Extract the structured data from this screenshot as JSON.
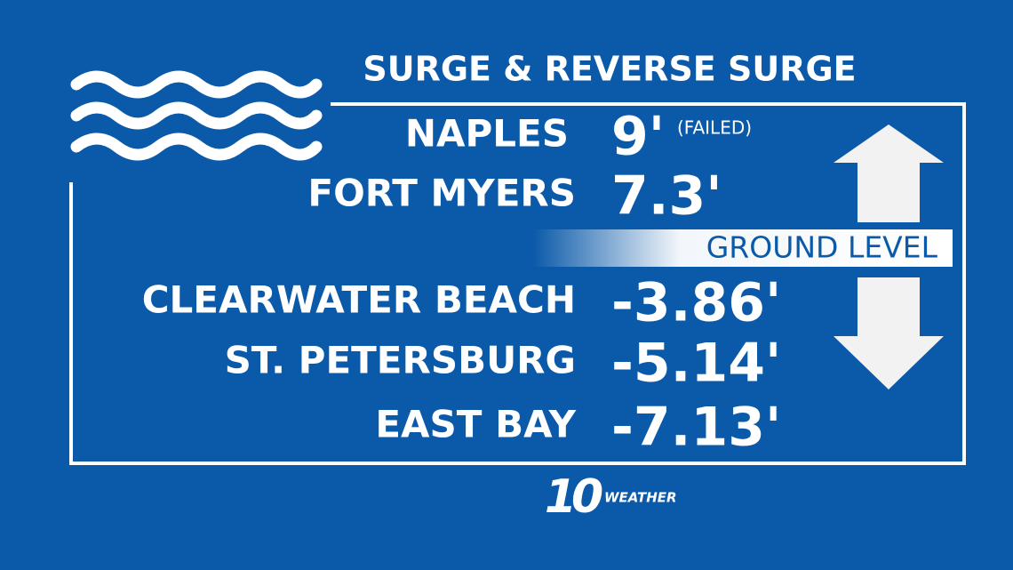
{
  "title": "SURGE & REVERSE SURGE",
  "rows": [
    {
      "name": "NAPLES",
      "value": "9'",
      "note": "(FAILED)"
    },
    {
      "name": "FORT MYERS",
      "value": "7.3'"
    },
    {
      "name": "CLEARWATER BEACH",
      "value": "-3.86'"
    },
    {
      "name": "ST. PETERSBURG",
      "value": "-5.14'"
    },
    {
      "name": "EAST BAY",
      "value": "-7.13'"
    }
  ],
  "ground_label": "GROUND LEVEL",
  "logo": {
    "number": "10",
    "text": "WEATHER"
  }
}
